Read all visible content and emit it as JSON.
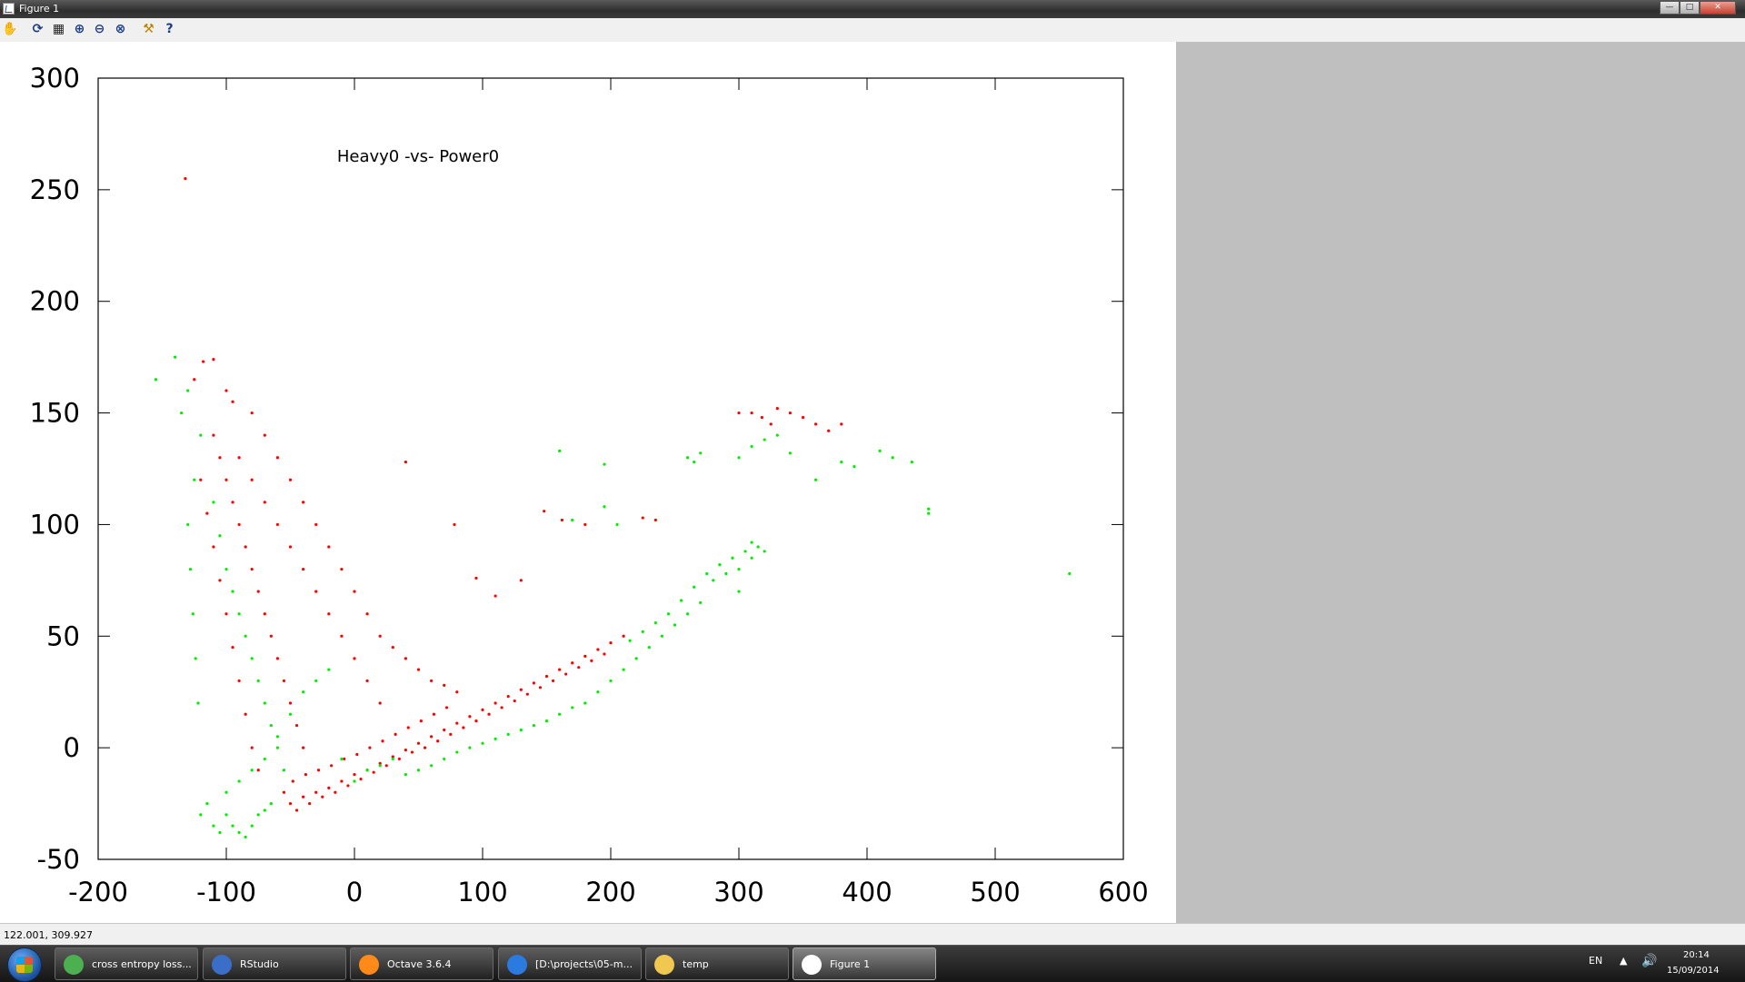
{
  "window": {
    "title": "Figure 1"
  },
  "toolbar": {
    "icons": [
      "pan-icon",
      "rotate-icon",
      "grid-icon",
      "zoom-in-icon",
      "zoom-out-icon",
      "zoom-box-icon",
      "settings-icon",
      "help-icon"
    ],
    "help_glyph": "?"
  },
  "status": {
    "coords": "122.001,  309.927"
  },
  "chart_data": {
    "type": "scatter",
    "title": "Heavy0 -vs- Power0",
    "xlim": [
      -200,
      600
    ],
    "ylim": [
      -50,
      300
    ],
    "xticks": [
      "-200",
      "-100",
      "0",
      "100",
      "200",
      "300",
      "400",
      "500",
      "600"
    ],
    "yticks": [
      "-50",
      "0",
      "50",
      "100",
      "150",
      "200",
      "250",
      "300"
    ],
    "grid": false,
    "colors": {
      "red": "#ff0000",
      "green": "#00ee00"
    },
    "series": [
      {
        "color": "#ff0000",
        "points": [
          [
            -132,
            255
          ],
          [
            -118,
            173
          ],
          [
            -110,
            174
          ],
          [
            -125,
            165
          ],
          [
            -100,
            160
          ],
          [
            -95,
            155
          ],
          [
            -80,
            150
          ],
          [
            -70,
            140
          ],
          [
            -60,
            130
          ],
          [
            -50,
            120
          ],
          [
            -40,
            110
          ],
          [
            -30,
            100
          ],
          [
            -20,
            90
          ],
          [
            -10,
            80
          ],
          [
            0,
            70
          ],
          [
            10,
            60
          ],
          [
            20,
            50
          ],
          [
            30,
            45
          ],
          [
            40,
            40
          ],
          [
            50,
            35
          ],
          [
            60,
            30
          ],
          [
            70,
            28
          ],
          [
            80,
            25
          ],
          [
            -110,
            140
          ],
          [
            -105,
            130
          ],
          [
            -100,
            120
          ],
          [
            -95,
            110
          ],
          [
            -90,
            100
          ],
          [
            -85,
            90
          ],
          [
            -80,
            80
          ],
          [
            -75,
            70
          ],
          [
            -70,
            60
          ],
          [
            -65,
            50
          ],
          [
            -60,
            40
          ],
          [
            -55,
            30
          ],
          [
            -50,
            20
          ],
          [
            -45,
            10
          ],
          [
            -40,
            0
          ],
          [
            -90,
            130
          ],
          [
            -80,
            120
          ],
          [
            -70,
            110
          ],
          [
            -60,
            100
          ],
          [
            -50,
            90
          ],
          [
            -40,
            80
          ],
          [
            -30,
            70
          ],
          [
            -20,
            60
          ],
          [
            -10,
            50
          ],
          [
            0,
            40
          ],
          [
            10,
            30
          ],
          [
            20,
            20
          ],
          [
            -120,
            120
          ],
          [
            -115,
            105
          ],
          [
            -110,
            90
          ],
          [
            -105,
            75
          ],
          [
            -100,
            60
          ],
          [
            -95,
            45
          ],
          [
            -90,
            30
          ],
          [
            -85,
            15
          ],
          [
            -80,
            0
          ],
          [
            -75,
            -10
          ],
          [
            40,
            128
          ],
          [
            78,
            100
          ],
          [
            148,
            106
          ],
          [
            162,
            102
          ],
          [
            180,
            100
          ],
          [
            225,
            103
          ],
          [
            235,
            102
          ],
          [
            95,
            76
          ],
          [
            130,
            75
          ],
          [
            110,
            68
          ],
          [
            310,
            150
          ],
          [
            318,
            148
          ],
          [
            325,
            145
          ],
          [
            340,
            150
          ],
          [
            350,
            148
          ],
          [
            360,
            145
          ],
          [
            370,
            142
          ],
          [
            380,
            145
          ],
          [
            300,
            150
          ],
          [
            330,
            152
          ],
          [
            -50,
            -25
          ],
          [
            -40,
            -22
          ],
          [
            -30,
            -20
          ],
          [
            -20,
            -18
          ],
          [
            -10,
            -15
          ],
          [
            0,
            -12
          ],
          [
            10,
            -10
          ],
          [
            20,
            -7
          ],
          [
            30,
            -4
          ],
          [
            40,
            -1
          ],
          [
            50,
            2
          ],
          [
            60,
            5
          ],
          [
            70,
            8
          ],
          [
            80,
            11
          ],
          [
            90,
            14
          ],
          [
            100,
            17
          ],
          [
            110,
            20
          ],
          [
            120,
            23
          ],
          [
            130,
            26
          ],
          [
            140,
            29
          ],
          [
            150,
            32
          ],
          [
            160,
            35
          ],
          [
            170,
            38
          ],
          [
            180,
            41
          ],
          [
            190,
            44
          ],
          [
            200,
            47
          ],
          [
            210,
            50
          ],
          [
            -45,
            -28
          ],
          [
            -35,
            -25
          ],
          [
            -25,
            -22
          ],
          [
            -15,
            -20
          ],
          [
            -5,
            -17
          ],
          [
            5,
            -14
          ],
          [
            15,
            -11
          ],
          [
            25,
            -8
          ],
          [
            35,
            -5
          ],
          [
            45,
            -2
          ],
          [
            55,
            0
          ],
          [
            65,
            3
          ],
          [
            75,
            6
          ],
          [
            85,
            9
          ],
          [
            95,
            12
          ],
          [
            105,
            15
          ],
          [
            115,
            18
          ],
          [
            125,
            21
          ],
          [
            135,
            24
          ],
          [
            145,
            27
          ],
          [
            155,
            30
          ],
          [
            165,
            33
          ],
          [
            175,
            36
          ],
          [
            185,
            39
          ],
          [
            195,
            42
          ],
          [
            -55,
            -20
          ],
          [
            -48,
            -15
          ],
          [
            -38,
            -12
          ],
          [
            -28,
            -10
          ],
          [
            -18,
            -8
          ],
          [
            -8,
            -5
          ],
          [
            2,
            -3
          ],
          [
            12,
            0
          ],
          [
            22,
            3
          ],
          [
            32,
            6
          ],
          [
            42,
            9
          ],
          [
            52,
            12
          ],
          [
            62,
            15
          ],
          [
            72,
            18
          ]
        ]
      },
      {
        "color": "#00ee00",
        "points": [
          [
            -140,
            175
          ],
          [
            -155,
            165
          ],
          [
            -130,
            160
          ],
          [
            -135,
            150
          ],
          [
            -120,
            140
          ],
          [
            -125,
            120
          ],
          [
            -130,
            100
          ],
          [
            -128,
            80
          ],
          [
            -126,
            60
          ],
          [
            -124,
            40
          ],
          [
            -122,
            20
          ],
          [
            -110,
            110
          ],
          [
            -105,
            95
          ],
          [
            -100,
            80
          ],
          [
            -95,
            70
          ],
          [
            -90,
            60
          ],
          [
            -85,
            50
          ],
          [
            -80,
            40
          ],
          [
            -75,
            30
          ],
          [
            -70,
            20
          ],
          [
            -65,
            10
          ],
          [
            -60,
            0
          ],
          [
            -55,
            -10
          ],
          [
            -100,
            -30
          ],
          [
            -95,
            -35
          ],
          [
            -90,
            -38
          ],
          [
            -85,
            -40
          ],
          [
            -80,
            -35
          ],
          [
            -75,
            -30
          ],
          [
            -70,
            -28
          ],
          [
            -65,
            -25
          ],
          [
            -110,
            -35
          ],
          [
            -105,
            -38
          ],
          [
            -120,
            -30
          ],
          [
            -115,
            -25
          ],
          [
            -100,
            -20
          ],
          [
            -90,
            -15
          ],
          [
            -80,
            -10
          ],
          [
            -70,
            -5
          ],
          [
            -60,
            5
          ],
          [
            -50,
            15
          ],
          [
            -40,
            25
          ],
          [
            -30,
            30
          ],
          [
            -20,
            35
          ],
          [
            -10,
            -5
          ],
          [
            0,
            -15
          ],
          [
            10,
            -10
          ],
          [
            20,
            -8
          ],
          [
            30,
            -5
          ],
          [
            160,
            133
          ],
          [
            195,
            127
          ],
          [
            170,
            102
          ],
          [
            195,
            108
          ],
          [
            205,
            100
          ],
          [
            260,
            130
          ],
          [
            265,
            128
          ],
          [
            270,
            132
          ],
          [
            330,
            140
          ],
          [
            300,
            130
          ],
          [
            310,
            135
          ],
          [
            320,
            138
          ],
          [
            340,
            132
          ],
          [
            360,
            120
          ],
          [
            380,
            128
          ],
          [
            390,
            126
          ],
          [
            410,
            133
          ],
          [
            420,
            130
          ],
          [
            435,
            128
          ],
          [
            448,
            105
          ],
          [
            448,
            107
          ],
          [
            558,
            78
          ],
          [
            300,
            80
          ],
          [
            310,
            85
          ],
          [
            320,
            88
          ],
          [
            280,
            75
          ],
          [
            290,
            78
          ],
          [
            300,
            70
          ],
          [
            270,
            65
          ],
          [
            260,
            60
          ],
          [
            250,
            55
          ],
          [
            240,
            50
          ],
          [
            230,
            45
          ],
          [
            220,
            40
          ],
          [
            210,
            35
          ],
          [
            200,
            30
          ],
          [
            190,
            25
          ],
          [
            180,
            20
          ],
          [
            170,
            18
          ],
          [
            160,
            15
          ],
          [
            150,
            12
          ],
          [
            140,
            10
          ],
          [
            130,
            8
          ],
          [
            120,
            6
          ],
          [
            110,
            4
          ],
          [
            100,
            2
          ],
          [
            90,
            0
          ],
          [
            80,
            -2
          ],
          [
            70,
            -5
          ],
          [
            60,
            -8
          ],
          [
            50,
            -10
          ],
          [
            40,
            -12
          ],
          [
            310,
            92
          ],
          [
            315,
            90
          ],
          [
            305,
            88
          ],
          [
            295,
            85
          ],
          [
            285,
            82
          ],
          [
            275,
            78
          ],
          [
            265,
            72
          ],
          [
            255,
            66
          ],
          [
            245,
            60
          ],
          [
            235,
            56
          ],
          [
            225,
            52
          ],
          [
            215,
            48
          ]
        ]
      }
    ]
  },
  "taskbar": {
    "tasks": [
      {
        "label": "cross entropy loss...",
        "icon": "chrome-icon",
        "color": "#4caf50"
      },
      {
        "label": "RStudio",
        "icon": "rstudio-icon",
        "color": "#3a6ec8"
      },
      {
        "label": "Octave 3.6.4",
        "icon": "octave-icon",
        "color": "#ff8a1a"
      },
      {
        "label": "[D:\\projects\\05-m...",
        "icon": "editor-icon",
        "color": "#2a7adf"
      },
      {
        "label": "temp",
        "icon": "folder-icon",
        "color": "#f0c850"
      },
      {
        "label": "Figure 1",
        "icon": "figure-icon",
        "color": "#ffffff"
      }
    ],
    "lang": "EN",
    "time": "20:14",
    "date": "15/09/2014"
  }
}
